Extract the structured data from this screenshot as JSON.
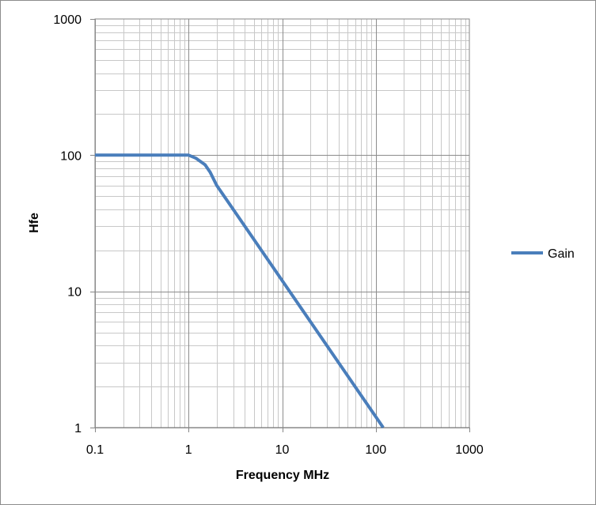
{
  "chart_data": {
    "type": "line",
    "title": "",
    "xlabel": "Frequency MHz",
    "ylabel": "Hfe",
    "x_scale": "log",
    "y_scale": "log",
    "xlim": [
      0.1,
      1000
    ],
    "ylim": [
      1,
      1000
    ],
    "x_ticks": [
      "0.1",
      "1",
      "10",
      "100",
      "1000"
    ],
    "y_ticks": [
      "1",
      "10",
      "100",
      "1000"
    ],
    "grid": true,
    "legend_position": "right",
    "series": [
      {
        "name": "Gain",
        "color": "#4a7ebb",
        "x": [
          0.1,
          0.5,
          1,
          1.2,
          1.5,
          1.7,
          2,
          5,
          10,
          20,
          50,
          100,
          120
        ],
        "y": [
          100,
          100,
          100,
          95,
          85,
          75,
          60,
          24,
          12,
          6,
          2.4,
          1.2,
          1
        ]
      }
    ]
  }
}
